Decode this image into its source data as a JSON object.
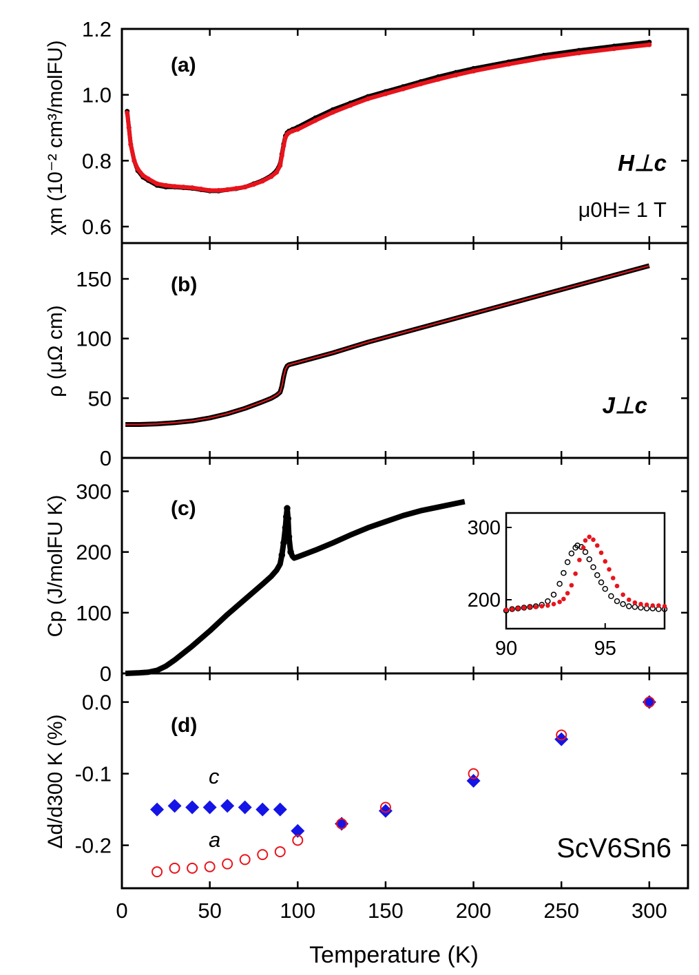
{
  "x_axis": {
    "label": "Temperature (K)",
    "range": [
      0,
      322
    ],
    "ticks": [
      0,
      50,
      100,
      150,
      200,
      250,
      300
    ]
  },
  "chart_data": [
    {
      "id": "a",
      "type": "scatter",
      "panel_label": "(a)",
      "ylabel": "χm (10⁻² cm³/molFU)",
      "ylim": [
        0.55,
        1.2
      ],
      "yticks": [
        "0.6",
        "0.8",
        "1.0",
        "1.2"
      ],
      "ytick_values": [
        0.6,
        0.8,
        1.0,
        1.2
      ],
      "annotations": [
        "H⊥c",
        "μ0H= 1 T"
      ],
      "series": [
        {
          "name": "black",
          "color": "#000000",
          "x": [
            3,
            4,
            5,
            7,
            9,
            12,
            15,
            20,
            25,
            30,
            35,
            40,
            45,
            50,
            55,
            60,
            65,
            70,
            75,
            80,
            85,
            88,
            90,
            91,
            92,
            93,
            94,
            95,
            97,
            100,
            110,
            120,
            130,
            140,
            150,
            160,
            170,
            180,
            190,
            200,
            220,
            240,
            260,
            280,
            300
          ],
          "y": [
            0.95,
            0.9,
            0.85,
            0.8,
            0.77,
            0.75,
            0.74,
            0.725,
            0.72,
            0.72,
            0.718,
            0.716,
            0.712,
            0.708,
            0.708,
            0.712,
            0.715,
            0.72,
            0.73,
            0.74,
            0.755,
            0.77,
            0.79,
            0.82,
            0.85,
            0.875,
            0.885,
            0.89,
            0.895,
            0.902,
            0.93,
            0.955,
            0.975,
            0.995,
            1.01,
            1.025,
            1.04,
            1.055,
            1.068,
            1.08,
            1.1,
            1.12,
            1.135,
            1.148,
            1.16
          ]
        },
        {
          "name": "red",
          "color": "#e8141c",
          "x": [
            3,
            4,
            5,
            7,
            9,
            12,
            15,
            20,
            25,
            30,
            35,
            40,
            45,
            50,
            55,
            60,
            65,
            70,
            75,
            80,
            85,
            88,
            90,
            91,
            92,
            93,
            94,
            95,
            97,
            100,
            110,
            120,
            130,
            140,
            150,
            160,
            170,
            180,
            190,
            200,
            220,
            240,
            260,
            280,
            300
          ],
          "y": [
            0.945,
            0.9,
            0.85,
            0.8,
            0.775,
            0.755,
            0.745,
            0.73,
            0.725,
            0.722,
            0.72,
            0.718,
            0.714,
            0.71,
            0.71,
            0.712,
            0.716,
            0.72,
            0.728,
            0.738,
            0.752,
            0.765,
            0.785,
            0.815,
            0.845,
            0.87,
            0.88,
            0.885,
            0.89,
            0.895,
            0.922,
            0.947,
            0.968,
            0.988,
            1.003,
            1.018,
            1.033,
            1.047,
            1.06,
            1.072,
            1.093,
            1.112,
            1.127,
            1.14,
            1.152
          ]
        }
      ]
    },
    {
      "id": "b",
      "type": "line",
      "panel_label": "(b)",
      "ylabel": "ρ (μΩ cm)",
      "ylim": [
        0,
        180
      ],
      "yticks": [
        "0",
        "50",
        "100",
        "150"
      ],
      "ytick_values": [
        0,
        50,
        100,
        150
      ],
      "annotations": [
        "J⊥c"
      ],
      "series": [
        {
          "name": "black",
          "color": "#000000",
          "x": [
            2,
            10,
            20,
            30,
            40,
            50,
            60,
            70,
            80,
            85,
            88,
            90,
            91,
            92,
            93,
            94,
            95,
            100,
            120,
            140,
            160,
            180,
            200,
            220,
            240,
            260,
            280,
            300
          ],
          "y": [
            28,
            28,
            28.5,
            29.5,
            31,
            33.5,
            37,
            41.5,
            47,
            50,
            52.5,
            55,
            60,
            68,
            74,
            77,
            78,
            80,
            88,
            97,
            105,
            113,
            121,
            129,
            137,
            145,
            153,
            161
          ]
        },
        {
          "name": "red",
          "color": "#e8141c",
          "x": [
            2,
            10,
            20,
            30,
            40,
            50,
            60,
            70,
            80,
            85,
            88,
            90,
            91,
            92,
            93,
            94,
            95,
            100,
            120,
            140,
            160,
            180,
            200,
            220,
            240,
            260,
            280,
            300
          ],
          "y": [
            28,
            28,
            28.5,
            29.5,
            31,
            33.5,
            37,
            41.5,
            47,
            50,
            52.5,
            55,
            60,
            68,
            74,
            77,
            78,
            80,
            88,
            97,
            105,
            113,
            121,
            129,
            137,
            145,
            153,
            161
          ]
        }
      ]
    },
    {
      "id": "c",
      "type": "scatter",
      "panel_label": "(c)",
      "ylabel": "Cp (J/molFU K)",
      "ylim": [
        0,
        355
      ],
      "yticks": [
        "0",
        "100",
        "200",
        "300"
      ],
      "ytick_values": [
        0,
        100,
        200,
        300
      ],
      "series": [
        {
          "name": "black",
          "color": "#000000",
          "x": [
            2,
            10,
            15,
            20,
            25,
            30,
            40,
            50,
            60,
            70,
            80,
            85,
            88,
            90,
            91,
            92,
            93,
            93.5,
            94,
            94.5,
            95,
            96,
            97,
            98,
            100,
            110,
            120,
            130,
            140,
            150,
            160,
            170,
            180,
            190,
            195
          ],
          "y": [
            0,
            1,
            2,
            5,
            12,
            22,
            45,
            70,
            97,
            122,
            147,
            160,
            170,
            180,
            195,
            215,
            240,
            258,
            272,
            255,
            225,
            200,
            193,
            190,
            192,
            203,
            215,
            228,
            240,
            250,
            260,
            268,
            274,
            280,
            283
          ]
        }
      ],
      "inset": {
        "type": "scatter",
        "xlim": [
          90,
          98
        ],
        "ylim": [
          160,
          320
        ],
        "xticks": [
          "90",
          "95"
        ],
        "xtick_values": [
          90,
          95
        ],
        "yticks": [
          "200",
          "300"
        ],
        "ytick_values": [
          200,
          300
        ],
        "series": [
          {
            "name": "black-open",
            "color": "#000000",
            "fill": "none",
            "x": [
              90,
              90.3,
              90.6,
              90.9,
              91.2,
              91.5,
              91.8,
              92.1,
              92.4,
              92.7,
              92.9,
              93.1,
              93.3,
              93.5,
              93.6,
              93.8,
              94.0,
              94.2,
              94.4,
              94.6,
              94.8,
              95.0,
              95.3,
              95.6,
              95.9,
              96.2,
              96.5,
              96.8,
              97.1,
              97.4,
              97.7,
              98
            ],
            "y": [
              185,
              187,
              188,
              189,
              190,
              191,
              193,
              198,
              207,
              222,
              237,
              252,
              264,
              272,
              275,
              273,
              266,
              256,
              245,
              234,
              224,
              215,
              205,
              198,
              194,
              191,
              190,
              189,
              188,
              188,
              187,
              187
            ]
          },
          {
            "name": "red-filled",
            "color": "#e8141c",
            "fill": "#e8141c",
            "x": [
              90,
              90.3,
              90.6,
              90.9,
              91.2,
              91.5,
              91.8,
              92.1,
              92.4,
              92.7,
              92.9,
              93.1,
              93.3,
              93.5,
              93.7,
              93.9,
              94.0,
              94.2,
              94.4,
              94.6,
              94.8,
              95.0,
              95.2,
              95.4,
              95.6,
              95.9,
              96.2,
              96.5,
              96.8,
              97.1,
              97.4,
              97.7,
              98
            ],
            "y": [
              186,
              187,
              188,
              189,
              190,
              190,
              191,
              192,
              194,
              197,
              201,
              209,
              220,
              236,
              255,
              272,
              282,
              287,
              283,
              275,
              265,
              253,
              242,
              230,
              219,
              207,
              200,
              196,
              194,
              193,
              192,
              192,
              191
            ]
          }
        ]
      }
    },
    {
      "id": "d",
      "type": "scatter",
      "panel_label": "(d)",
      "ylabel": "Δd/d300 K (%)",
      "ylim": [
        -0.26,
        0.04
      ],
      "yticks": [
        "0.0",
        "-0.1",
        "-0.2"
      ],
      "ytick_values": [
        0.0,
        -0.1,
        -0.2
      ],
      "annotations": [
        "c",
        "a",
        "ScV6Sn6"
      ],
      "series": [
        {
          "name": "c",
          "color": "#1414e6",
          "marker": "diamond",
          "x": [
            20,
            30,
            40,
            50,
            60,
            70,
            80,
            90,
            100,
            125,
            150,
            200,
            250,
            300
          ],
          "y": [
            -0.15,
            -0.145,
            -0.147,
            -0.147,
            -0.145,
            -0.147,
            -0.15,
            -0.15,
            -0.18,
            -0.17,
            -0.152,
            -0.11,
            -0.052,
            0.0
          ]
        },
        {
          "name": "a",
          "color": "#e8141c",
          "marker": "open-circle",
          "x": [
            20,
            30,
            40,
            50,
            60,
            70,
            80,
            90,
            100,
            125,
            150,
            200,
            250,
            300
          ],
          "y": [
            -0.237,
            -0.232,
            -0.232,
            -0.23,
            -0.226,
            -0.22,
            -0.213,
            -0.209,
            -0.193,
            -0.17,
            -0.147,
            -0.1,
            -0.046,
            0.0
          ]
        }
      ]
    }
  ]
}
